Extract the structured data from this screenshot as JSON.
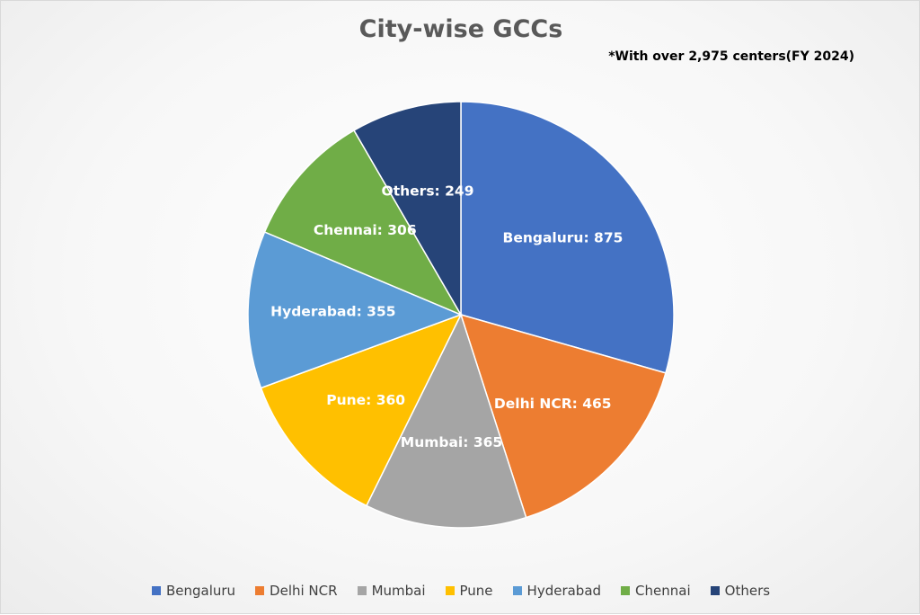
{
  "chart_data": {
    "type": "pie",
    "title": "City-wise GCCs",
    "annotation": "*With over 2,975 centers(FY 2024)",
    "start_angle_deg": 0,
    "direction": "clockwise",
    "legend_position": "bottom",
    "slices": [
      {
        "name": "Bengaluru",
        "value": 875,
        "label": "Bengaluru: 875",
        "color": "#4472C4"
      },
      {
        "name": "Delhi NCR",
        "value": 465,
        "label": "Delhi NCR: 465",
        "color": "#ED7D31"
      },
      {
        "name": "Mumbai",
        "value": 365,
        "label": "Mumbai: 365",
        "color": "#A5A5A5"
      },
      {
        "name": "Pune",
        "value": 360,
        "label": "Pune: 360",
        "color": "#FFC000"
      },
      {
        "name": "Hyderabad",
        "value": 355,
        "label": "Hyderabad: 355",
        "color": "#5B9BD5"
      },
      {
        "name": "Chennai",
        "value": 306,
        "label": "Chennai: 306",
        "color": "#70AD47"
      },
      {
        "name": "Others",
        "value": 249,
        "label": "Others: 249",
        "color": "#264478"
      }
    ]
  }
}
